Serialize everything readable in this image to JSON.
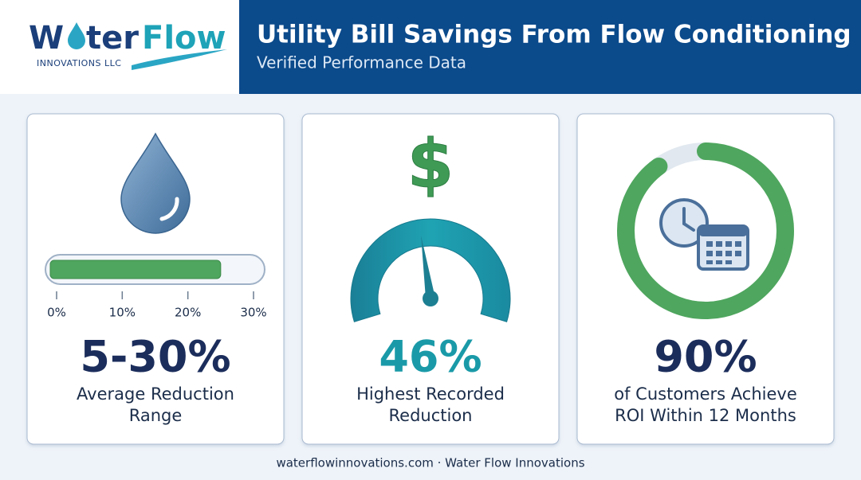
{
  "header": {
    "logo": {
      "first": "W",
      "rest": "ter",
      "second": "Flow",
      "tagline": "INNOVATIONS LLC"
    },
    "title": "Utility Bill Savings From Flow Conditioning",
    "subtitle": "Verified Performance Data"
  },
  "cards": [
    {
      "bar": {
        "range": [
          0,
          30
        ],
        "value": 25,
        "ticks": [
          {
            "value": 0,
            "label": "0%"
          },
          {
            "value": 10,
            "label": "10%"
          },
          {
            "value": 20,
            "label": "20%"
          },
          {
            "value": 30,
            "label": "30%"
          }
        ]
      },
      "headline": "5-30%",
      "caption": [
        "Average Reduction",
        "Range"
      ]
    },
    {
      "icon": "$",
      "gauge": {
        "range": [
          0,
          100
        ],
        "value": 46
      },
      "headline": "46%",
      "caption": [
        "Highest Recorded",
        "Reduction"
      ]
    },
    {
      "ring": {
        "range": [
          0,
          100
        ],
        "value": 90
      },
      "headline": "90%",
      "caption": [
        "of Customers Achieve",
        "ROI Within 12 Months"
      ]
    }
  ],
  "footer": "waterflowinnovations.com · Water Flow Innovations"
}
